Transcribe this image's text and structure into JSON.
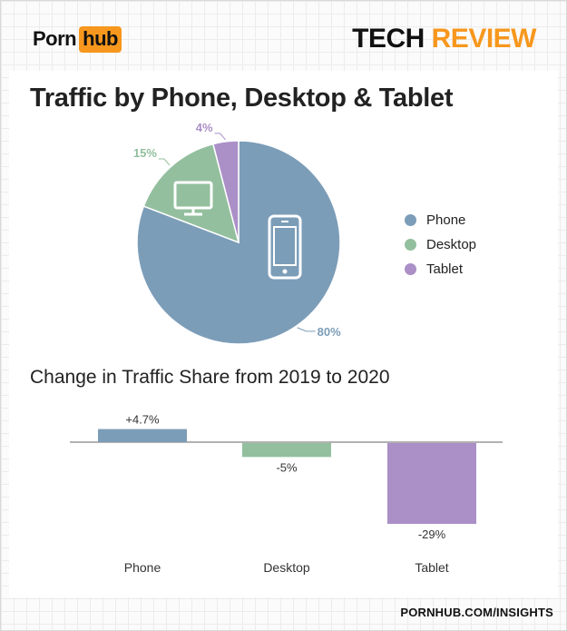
{
  "header": {
    "logo_left": "Porn",
    "logo_right": "hub",
    "brand_tech": "TECH",
    "brand_review": "REVIEW"
  },
  "footer": {
    "url": "PORNHUB.COM/INSIGHTS"
  },
  "colors": {
    "accent": "#f7971d",
    "phone": "#7c9db8",
    "desktop": "#93bf9e",
    "tablet": "#ab8fc7"
  },
  "icons": [
    "monitor-icon",
    "phone-icon"
  ],
  "chart_data": [
    {
      "type": "pie",
      "title": "Traffic by Phone, Desktop & Tablet",
      "categories": [
        "Phone",
        "Desktop",
        "Tablet"
      ],
      "values": [
        80,
        15,
        4
      ],
      "labels": [
        "80%",
        "15%",
        "4%"
      ],
      "colors": [
        "#7c9db8",
        "#93bf9e",
        "#ab8fc7"
      ],
      "legend": "right"
    },
    {
      "type": "bar",
      "title": "Change in Traffic Share from 2019 to 2020",
      "categories": [
        "Phone",
        "Desktop",
        "Tablet"
      ],
      "values": [
        4.7,
        -5,
        -29
      ],
      "labels": [
        "+4.7%",
        "-5%",
        "-29%"
      ],
      "colors": [
        "#7c9db8",
        "#93bf9e",
        "#ab8fc7"
      ],
      "ylim": [
        -29,
        4.7
      ]
    }
  ]
}
